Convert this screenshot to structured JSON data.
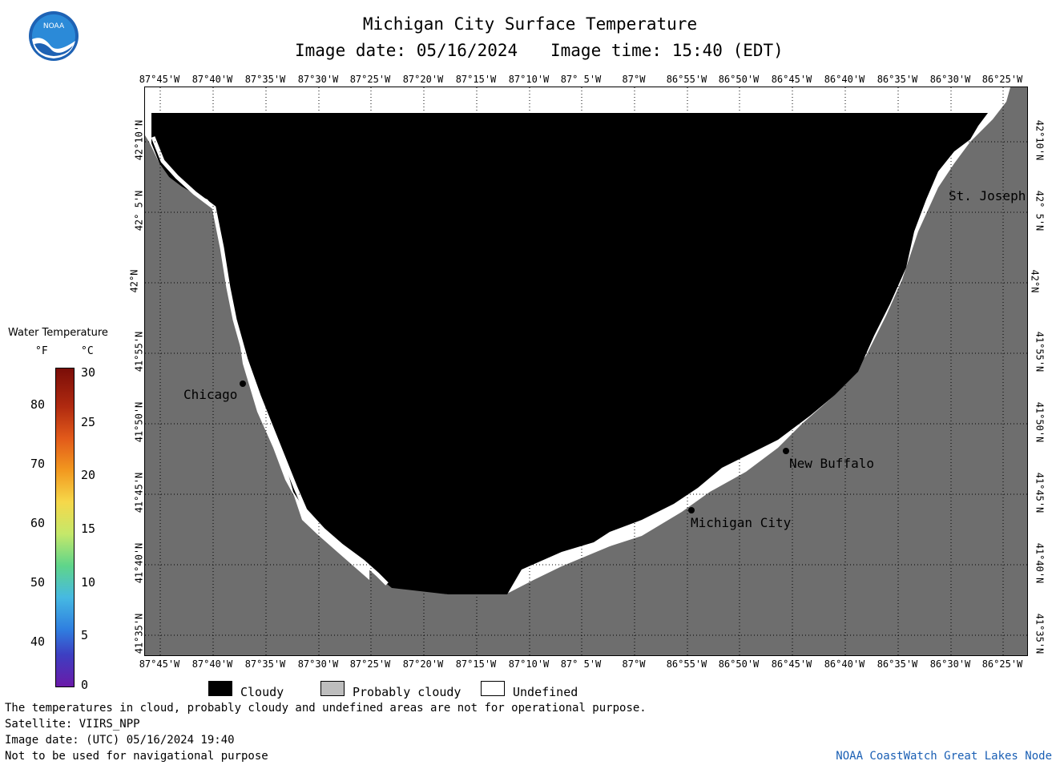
{
  "header": {
    "title": "Michigan City Surface Temperature",
    "image_date": "Image date: 05/16/2024",
    "image_time": "Image time: 15:40 (EDT)"
  },
  "logo": {
    "text": "NOAA"
  },
  "axes": {
    "lon_labels": [
      "87°45'W",
      "87°40'W",
      "87°35'W",
      "87°30'W",
      "87°25'W",
      "87°20'W",
      "87°15'W",
      "87°10'W",
      "87° 5'W",
      "87°W",
      "86°55'W",
      "86°50'W",
      "86°45'W",
      "86°40'W",
      "86°35'W",
      "86°30'W",
      "86°25'W"
    ],
    "lat_labels": [
      "42°10'N",
      "42° 5'N",
      "42°N",
      "41°55'N",
      "41°50'N",
      "41°45'N",
      "41°40'N",
      "41°35'N"
    ]
  },
  "cities": [
    {
      "name": "Chicago"
    },
    {
      "name": "New Buffalo"
    },
    {
      "name": "Michigan City"
    },
    {
      "name": "St. Joseph"
    }
  ],
  "legend": {
    "title": "Water Temperature",
    "unit_f": "°F",
    "unit_c": "°C",
    "f_ticks": [
      "80",
      "70",
      "60",
      "50",
      "40"
    ],
    "c_ticks": [
      "30",
      "25",
      "20",
      "15",
      "10",
      "5",
      "0"
    ]
  },
  "key": {
    "cloudy": "Cloudy",
    "probably_cloudy": "Probably cloudy",
    "undefined": "Undefined"
  },
  "colors": {
    "cloudy": "#000000",
    "land": "#6e6e6e",
    "probably_cloudy": "#bdbdbd",
    "undefined": "#ffffff",
    "credit": "#1a5fb4"
  },
  "footer": {
    "line1": "The temperatures in cloud, probably cloudy and undefined areas are not for operational purpose.",
    "line2": "Satellite: VIIRS_NPP",
    "line3": "Image date: (UTC) 05/16/2024  19:40",
    "line4": "Not to be used for navigational purpose",
    "credit": "NOAA CoastWatch Great Lakes Node"
  }
}
